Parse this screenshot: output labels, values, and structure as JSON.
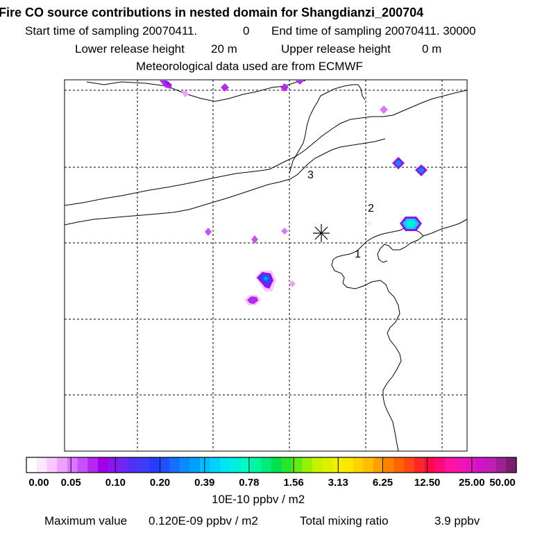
{
  "header": {
    "title": "Fire CO source contributions in nested domain for Shangdianzi_200704",
    "start_label": "Start time of sampling 20070411.",
    "start_value": "0",
    "end_label": "End time of sampling 20070411. 30000",
    "lower_label": "Lower release height",
    "lower_value": "20 m",
    "upper_label": "Upper release height",
    "upper_value": "0 m",
    "met_line": "Meteorological data used are from ECMWF"
  },
  "map": {
    "site_labels": [
      "1",
      "2",
      "3"
    ],
    "marker": "station-asterisk"
  },
  "colorbar": {
    "tick_labels": [
      "0.00",
      "0.05",
      "0.10",
      "0.20",
      "0.39",
      "0.78",
      "1.56",
      "3.13",
      "6.25",
      "12.50",
      "25.00",
      "50.00"
    ],
    "unit": "10E-10 ppbv / m2",
    "colors": [
      "#ffffff",
      "#fde8ff",
      "#f8c8ff",
      "#f0a0ff",
      "#dc78ff",
      "#c850ff",
      "#b428f0",
      "#a000e6",
      "#8c14f0",
      "#6e28f5",
      "#5032f5",
      "#3c3cff",
      "#283cff",
      "#1e50ff",
      "#146eff",
      "#0a8cff",
      "#00a0ff",
      "#00beff",
      "#00d2ff",
      "#00e6f0",
      "#00f0dc",
      "#00fac8",
      "#00f5a0",
      "#00eb78",
      "#00e150",
      "#28e628",
      "#64eb14",
      "#96f000",
      "#c8f000",
      "#dcf000",
      "#f0f000",
      "#ffe600",
      "#ffd200",
      "#ffbe00",
      "#ffa000",
      "#ff8200",
      "#ff6400",
      "#ff4614",
      "#ff2828",
      "#ff0a46",
      "#ff0a78",
      "#ff14a0",
      "#f014b4",
      "#e614be",
      "#d214c8",
      "#be1eb4",
      "#a01e96",
      "#781e6e"
    ]
  },
  "footer": {
    "max_label": "Maximum value",
    "max_value": "0.120E-09 ppbv / m2",
    "total_label": "Total mixing ratio",
    "total_value": "3.9 ppbv"
  }
}
